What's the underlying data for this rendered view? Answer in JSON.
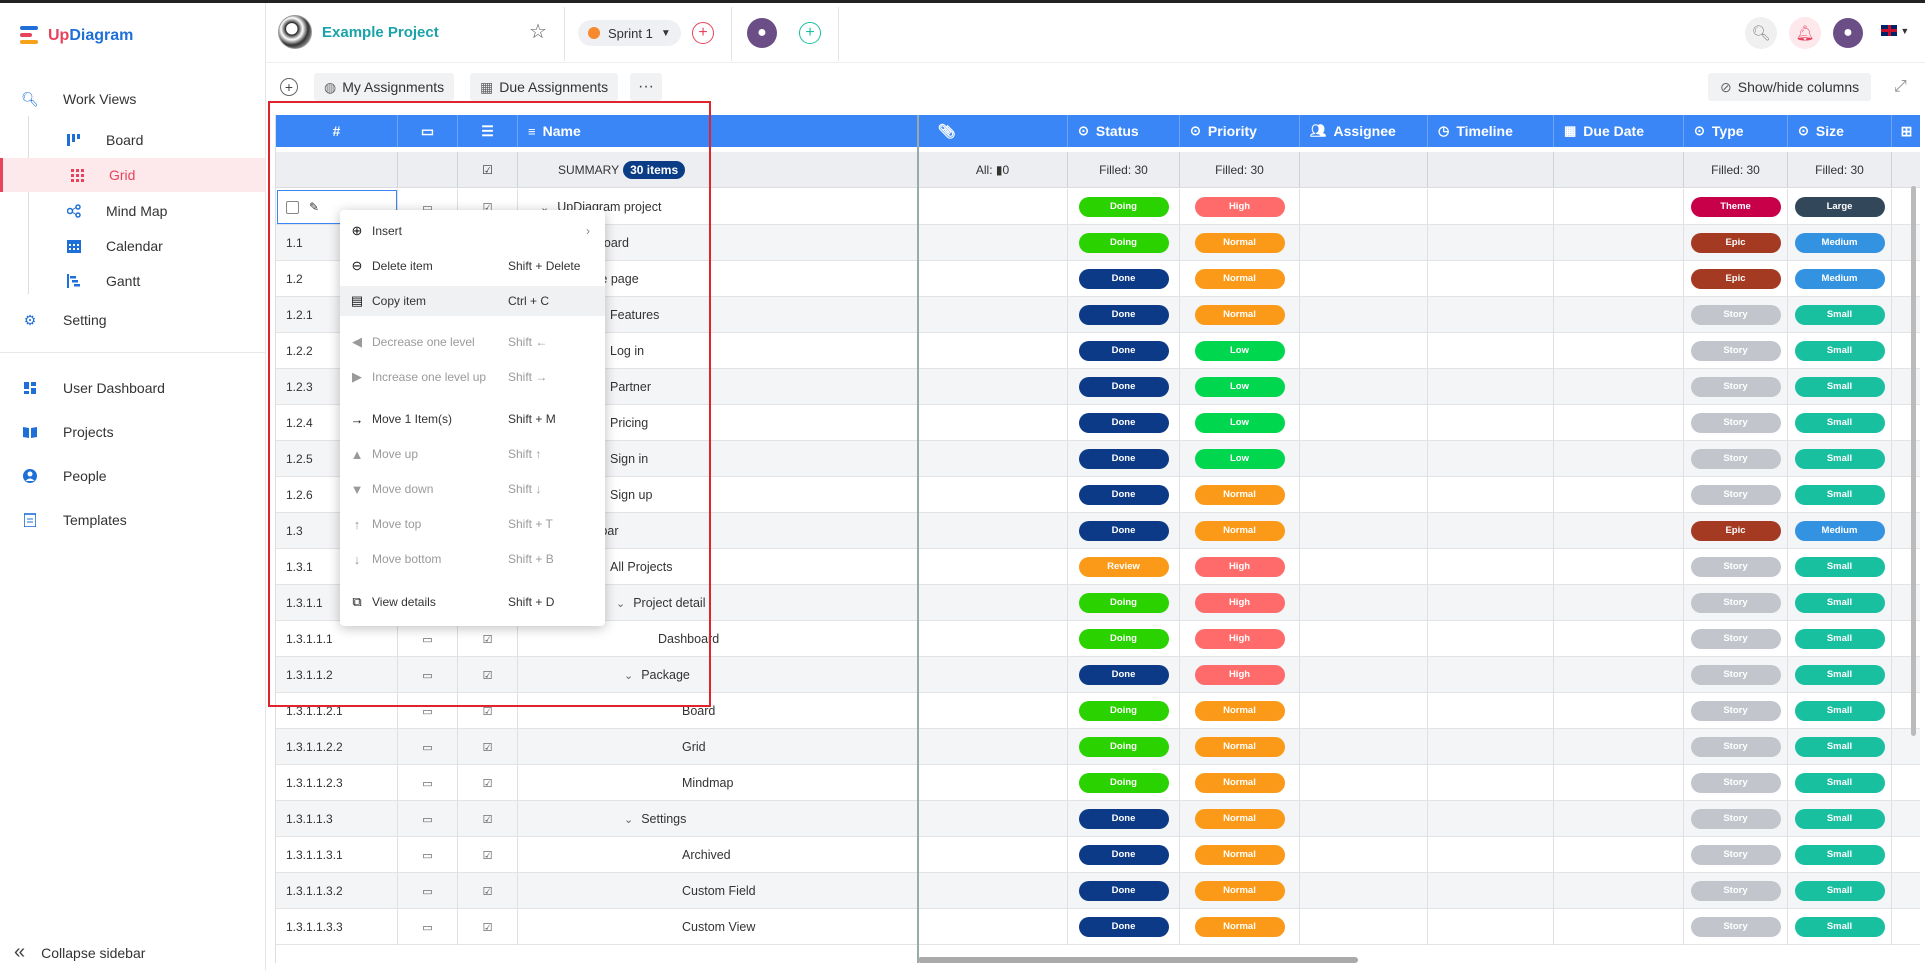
{
  "app": {
    "brand_prefix": "Up",
    "brand_suffix": "Diagram"
  },
  "sidebar": {
    "work_views": "Work Views",
    "sub_items": [
      {
        "label": "Board",
        "icon": "board-icon",
        "active": false
      },
      {
        "label": "Grid",
        "icon": "grid-icon",
        "active": true
      },
      {
        "label": "Mind Map",
        "icon": "mindmap-icon",
        "active": false
      },
      {
        "label": "Calendar",
        "icon": "calendar-icon",
        "active": false
      },
      {
        "label": "Gantt",
        "icon": "gantt-icon",
        "active": false
      }
    ],
    "setting": "Setting",
    "user_dashboard": "User Dashboard",
    "projects": "Projects",
    "people": "People",
    "templates": "Templates",
    "collapse": "Collapse sidebar"
  },
  "header": {
    "project_name": "Example Project",
    "sprint": "Sprint 1"
  },
  "toolbar": {
    "my_assignments": "My Assignments",
    "due_assignments": "Due Assignments",
    "more": "···",
    "show_hide": "Show/hide columns"
  },
  "grid": {
    "columns": {
      "id": "#",
      "name": "Name",
      "status": "Status",
      "priority": "Priority",
      "assignee": "Assignee",
      "timeline": "Timeline",
      "due_date": "Due Date",
      "type": "Type",
      "size": "Size"
    },
    "summary": {
      "label": "SUMMARY",
      "count": "30 items",
      "attach": "All: ▮0",
      "status": "Filled: 30",
      "priority": "Filled: 30",
      "type": "Filled: 30",
      "size": "Filled: 30"
    },
    "rows": [
      {
        "id": "",
        "name": "UpDiagram project",
        "status": "Doing",
        "priority": "High",
        "type": "Theme",
        "size": "Large"
      },
      {
        "id": "1.1",
        "name": "hboard",
        "status": "Doing",
        "priority": "Normal",
        "type": "Epic",
        "size": "Medium"
      },
      {
        "id": "1.2",
        "name": "me page",
        "status": "Done",
        "priority": "Normal",
        "type": "Epic",
        "size": "Medium"
      },
      {
        "id": "1.2.1",
        "name": "Features",
        "status": "Done",
        "priority": "Normal",
        "type": "Story",
        "size": "Small"
      },
      {
        "id": "1.2.2",
        "name": "Log in",
        "status": "Done",
        "priority": "Low",
        "type": "Story",
        "size": "Small"
      },
      {
        "id": "1.2.3",
        "name": "Partner",
        "status": "Done",
        "priority": "Low",
        "type": "Story",
        "size": "Small"
      },
      {
        "id": "1.2.4",
        "name": "Pricing",
        "status": "Done",
        "priority": "Low",
        "type": "Story",
        "size": "Small"
      },
      {
        "id": "1.2.5",
        "name": "Sign in",
        "status": "Done",
        "priority": "Low",
        "type": "Story",
        "size": "Small"
      },
      {
        "id": "1.2.6",
        "name": "Sign up",
        "status": "Done",
        "priority": "Normal",
        "type": "Story",
        "size": "Small"
      },
      {
        "id": "1.3",
        "name": "e bar",
        "status": "Done",
        "priority": "Normal",
        "type": "Epic",
        "size": "Medium"
      },
      {
        "id": "1.3.1",
        "name": "All Projects",
        "status": "Review",
        "priority": "High",
        "type": "Story",
        "size": "Small"
      },
      {
        "id": "1.3.1.1",
        "name": "Project detail",
        "status": "Doing",
        "priority": "High",
        "type": "Story",
        "size": "Small"
      },
      {
        "id": "1.3.1.1.1",
        "name": "Dashboard",
        "status": "Doing",
        "priority": "High",
        "type": "Story",
        "size": "Small"
      },
      {
        "id": "1.3.1.1.2",
        "name": "Package",
        "status": "Done",
        "priority": "High",
        "type": "Story",
        "size": "Small"
      },
      {
        "id": "1.3.1.1.2.1",
        "name": "Board",
        "status": "Doing",
        "priority": "Normal",
        "type": "Story",
        "size": "Small"
      },
      {
        "id": "1.3.1.1.2.2",
        "name": "Grid",
        "status": "Doing",
        "priority": "Normal",
        "type": "Story",
        "size": "Small"
      },
      {
        "id": "1.3.1.1.2.3",
        "name": "Mindmap",
        "status": "Doing",
        "priority": "Normal",
        "type": "Story",
        "size": "Small"
      },
      {
        "id": "1.3.1.1.3",
        "name": "Settings",
        "status": "Done",
        "priority": "Normal",
        "type": "Story",
        "size": "Small"
      },
      {
        "id": "1.3.1.1.3.1",
        "name": "Archived",
        "status": "Done",
        "priority": "Normal",
        "type": "Story",
        "size": "Small"
      },
      {
        "id": "1.3.1.1.3.2",
        "name": "Custom Field",
        "status": "Done",
        "priority": "Normal",
        "type": "Story",
        "size": "Small"
      },
      {
        "id": "1.3.1.1.3.3",
        "name": "Custom View",
        "status": "Done",
        "priority": "Normal",
        "type": "Story",
        "size": "Small"
      }
    ]
  },
  "context_menu": [
    {
      "label": "Insert",
      "shortcut": "",
      "icon": "plus-circle-icon",
      "disabled": false,
      "arrow": "›"
    },
    {
      "label": "Delete item",
      "shortcut": "Shift + Delete",
      "icon": "minus-circle-icon",
      "disabled": false
    },
    {
      "label": "Copy item",
      "shortcut": "Ctrl + C",
      "icon": "copy-icon",
      "disabled": false,
      "highlight": true
    },
    {
      "label": "Decrease one level",
      "shortcut": "Shift ←",
      "icon": "arrow-left-circle-icon",
      "disabled": true
    },
    {
      "label": "Increase one level up",
      "shortcut": "Shift →",
      "icon": "arrow-right-circle-icon",
      "disabled": true
    },
    {
      "label": "Move 1 Item(s)",
      "shortcut": "Shift + M",
      "icon": "arrow-right-icon",
      "disabled": false
    },
    {
      "label": "Move up",
      "shortcut": "Shift ↑",
      "icon": "arrow-up-circle-icon",
      "disabled": true
    },
    {
      "label": "Move down",
      "shortcut": "Shift ↓",
      "icon": "arrow-down-circle-icon",
      "disabled": true
    },
    {
      "label": "Move top",
      "shortcut": "Shift + T",
      "icon": "arrow-top-icon",
      "disabled": true
    },
    {
      "label": "Move bottom",
      "shortcut": "Shift + B",
      "icon": "arrow-bottom-icon",
      "disabled": true
    },
    {
      "label": "View details",
      "shortcut": "Shift + D",
      "icon": "external-link-icon",
      "disabled": false
    }
  ],
  "colors": {
    "accent_blue": "#3a86f7",
    "brand_red": "#e8435c",
    "Doing": "#2ad200",
    "Done": "#0d3a86",
    "Review": "#fb9a18",
    "High": "#ff6b6b",
    "Normal": "#fb9a18",
    "Low": "#00d64e",
    "Theme": "#c8004a",
    "Epic": "#a53a23",
    "Story": "#c2c6cc",
    "Large": "#33475b",
    "Medium": "#3493e0",
    "Small": "#19c09f"
  }
}
